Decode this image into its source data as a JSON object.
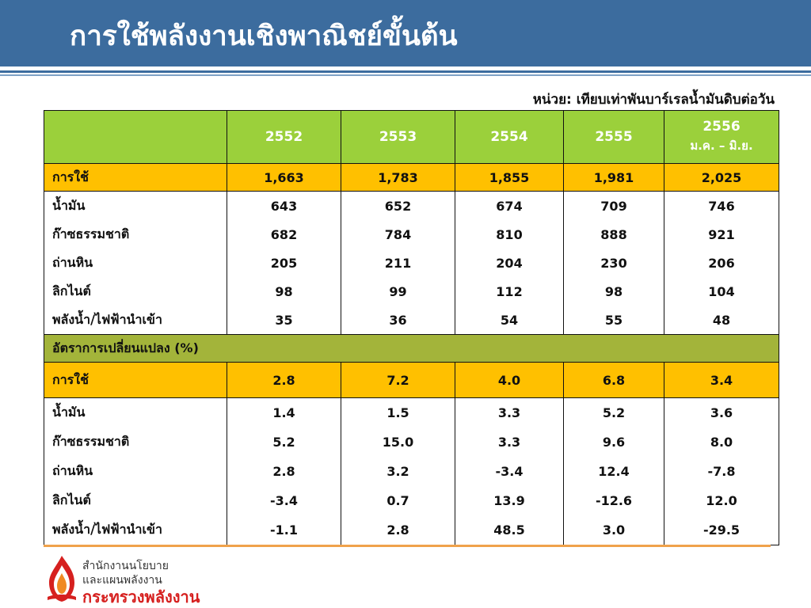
{
  "header": {
    "title": "การใช้พลังงานเชิงพาณิชย์ขั้นต้น"
  },
  "unit_note": "หน่วย: เทียบเท่าพันบาร์เรลน้ำมันดิบต่อวัน",
  "table": {
    "columns": [
      "2552",
      "2553",
      "2554",
      "2555",
      "2556"
    ],
    "last_col_sub": "ม.ค. – มิ.ย.",
    "volume": {
      "total": {
        "label": "การใช้",
        "values": [
          "1,663",
          "1,783",
          "1,855",
          "1,981",
          "2,025"
        ]
      },
      "rows": [
        {
          "label": "น้ำมัน",
          "values": [
            "643",
            "652",
            "674",
            "709",
            "746"
          ]
        },
        {
          "label": "ก๊าซธรรมชาติ",
          "values": [
            "682",
            "784",
            "810",
            "888",
            "921"
          ]
        },
        {
          "label": "ถ่านหิน",
          "values": [
            "205",
            "211",
            "204",
            "230",
            "206"
          ]
        },
        {
          "label": "ลิกไนต์",
          "values": [
            "98",
            "99",
            "112",
            "98",
            "104"
          ]
        },
        {
          "label": "พลังน้ำ/ไฟฟ้านำเข้า",
          "values": [
            "35",
            "36",
            "54",
            "55",
            "48"
          ]
        }
      ]
    },
    "change_section_label": "อัตราการเปลี่ยนแปลง (%)",
    "change": {
      "total": {
        "label": "การใช้",
        "values": [
          "2.8",
          "7.2",
          "4.0",
          "6.8",
          "3.4"
        ]
      },
      "rows": [
        {
          "label": "น้ำมัน",
          "values": [
            "1.4",
            "1.5",
            "3.3",
            "5.2",
            "3.6"
          ]
        },
        {
          "label": "ก๊าซธรรมชาติ",
          "values": [
            "5.2",
            "15.0",
            "3.3",
            "9.6",
            "8.0"
          ]
        },
        {
          "label": "ถ่านหิน",
          "values": [
            "2.8",
            "3.2",
            "-3.4",
            "12.4",
            "-7.8"
          ]
        },
        {
          "label": "ลิกไนต์",
          "values": [
            "-3.4",
            "0.7",
            "13.9",
            "-12.6",
            "12.0"
          ]
        },
        {
          "label": "พลังน้ำ/ไฟฟ้านำเข้า",
          "values": [
            "-1.1",
            "2.8",
            "48.5",
            "3.0",
            "-29.5"
          ]
        }
      ]
    }
  },
  "footer": {
    "org_line1": "สำนักงานนโยบาย",
    "org_line2": "และแผนพลังงาน",
    "org_line3": "กระทรวงพลังงาน",
    "logo_icon": "flame-logo-icon"
  },
  "colors": {
    "header_bg": "#3c6c9e",
    "header_row_bg": "#9bd03b",
    "total_row_bg": "#ffc000",
    "section_row_bg": "#a3b43a",
    "footer_line": "#f0a24b",
    "logo_red": "#d6201f"
  }
}
